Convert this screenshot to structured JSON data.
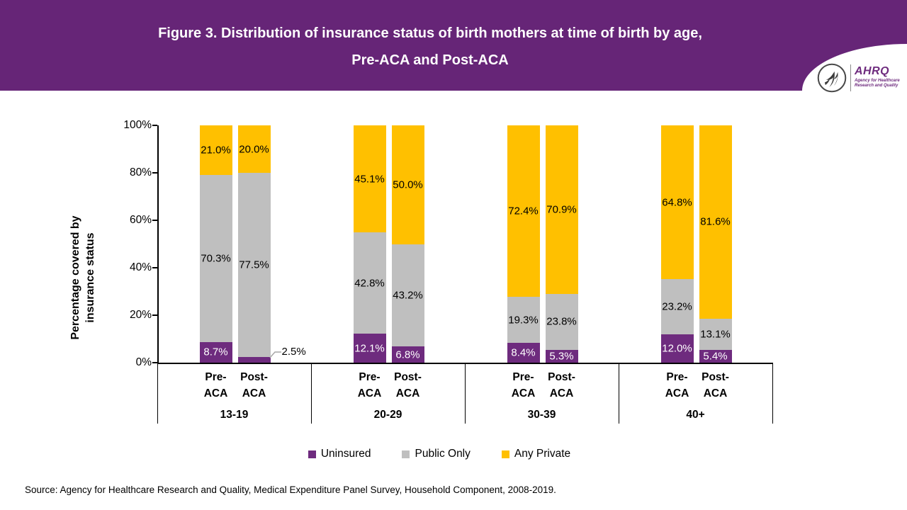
{
  "banner": {
    "title_line1": "Figure 3. Distribution of insurance status of birth mothers at time of birth by age,",
    "title_line2": "Pre-ACA and Post-ACA",
    "bg_color": "#662577",
    "logo": {
      "org_abbr": "AHRQ",
      "tagline_line1": "Agency for Healthcare",
      "tagline_line2": "Research and Quality"
    }
  },
  "chart_data": {
    "type": "bar",
    "subtype": "stacked-100-percent",
    "ylabel_line1": "Percentage covered by",
    "ylabel_line2": "insurance status",
    "yticks": [
      "0%",
      "20%",
      "40%",
      "60%",
      "80%",
      "100%"
    ],
    "ylim": [
      0,
      100
    ],
    "unit": "percent",
    "series_keys": [
      "uninsured",
      "public_only",
      "any_private"
    ],
    "legend": [
      {
        "name": "Uninsured",
        "color": "#6E2B7E",
        "label_text_color": "#ffffff"
      },
      {
        "name": "Public Only",
        "color": "#BFBFBF",
        "label_text_color": "#000000"
      },
      {
        "name": "Any Private",
        "color": "#FFC000",
        "label_text_color": "#000000"
      }
    ],
    "groups": [
      {
        "age": "13-19",
        "bars": [
          {
            "tick_line1": "Pre-",
            "tick_line2": "ACA",
            "uninsured": 8.7,
            "public_only": 70.3,
            "any_private": 21.0
          },
          {
            "tick_line1": "Post-",
            "tick_line2": "ACA",
            "uninsured": 2.5,
            "public_only": 77.5,
            "any_private": 20.0,
            "uninsured_label_outside": true
          }
        ]
      },
      {
        "age": "20-29",
        "bars": [
          {
            "tick_line1": "Pre-",
            "tick_line2": "ACA",
            "uninsured": 12.1,
            "public_only": 42.8,
            "any_private": 45.1
          },
          {
            "tick_line1": "Post-",
            "tick_line2": "ACA",
            "uninsured": 6.8,
            "public_only": 43.2,
            "any_private": 50.0
          }
        ]
      },
      {
        "age": "30-39",
        "bars": [
          {
            "tick_line1": "Pre-",
            "tick_line2": "ACA",
            "uninsured": 8.4,
            "public_only": 19.3,
            "any_private": 72.4
          },
          {
            "tick_line1": "Post-",
            "tick_line2": "ACA",
            "uninsured": 5.3,
            "public_only": 23.8,
            "any_private": 70.9
          }
        ]
      },
      {
        "age": "40+",
        "bars": [
          {
            "tick_line1": "Pre-",
            "tick_line2": "ACA",
            "uninsured": 12.0,
            "public_only": 23.2,
            "any_private": 64.8
          },
          {
            "tick_line1": "Post-",
            "tick_line2": "ACA",
            "uninsured": 5.4,
            "public_only": 13.1,
            "any_private": 81.6
          }
        ]
      }
    ]
  },
  "source": "Source: Agency for Healthcare Research and Quality, Medical Expenditure Panel Survey, Household Component, 2008-2019."
}
